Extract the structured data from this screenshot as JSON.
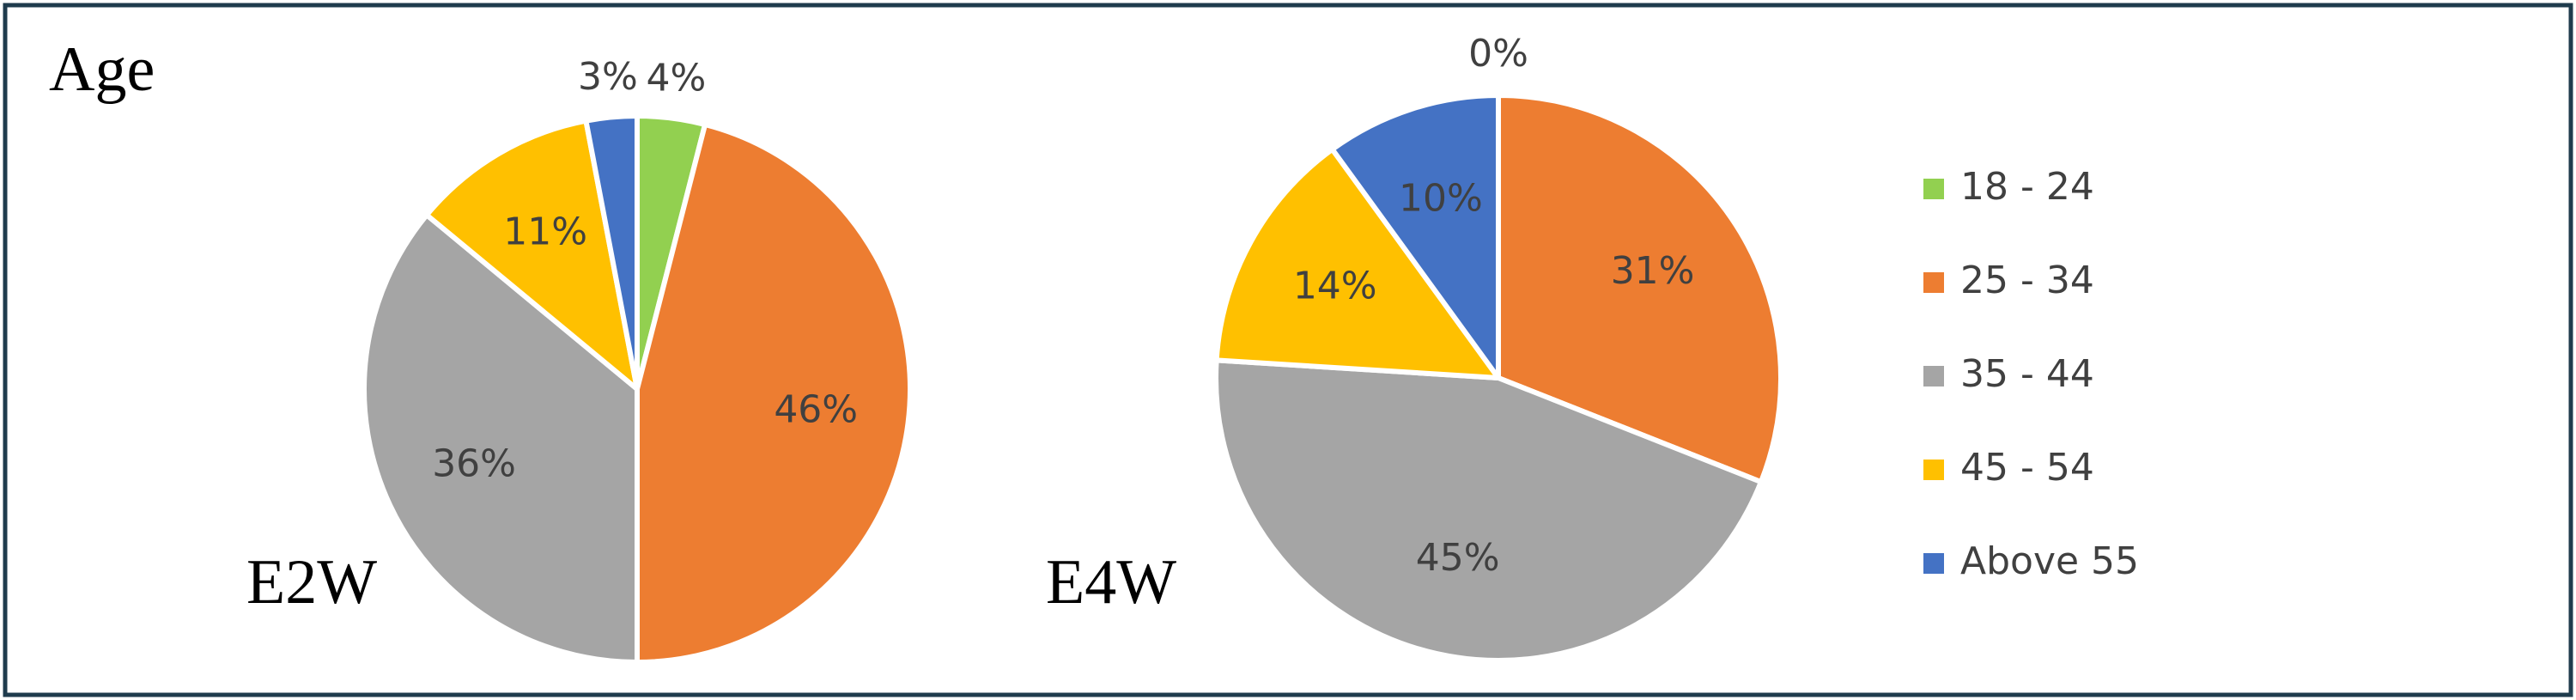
{
  "title": "Age",
  "legend": {
    "categories": [
      "18 - 24",
      "25 - 34",
      "35 - 44",
      "45 - 54",
      "Above 55"
    ],
    "colors": [
      "#92d050",
      "#ed7d31",
      "#a5a5a5",
      "#ffc000",
      "#4472c4"
    ]
  },
  "chart_data": [
    {
      "type": "pie",
      "label": "E2W",
      "values": [
        4,
        46,
        36,
        11,
        3
      ],
      "value_labels": [
        "4%",
        "46%",
        "36%",
        "11%",
        "3%"
      ]
    },
    {
      "type": "pie",
      "label": "E4W",
      "values": [
        0,
        31,
        45,
        14,
        10
      ],
      "value_labels": [
        "0%",
        "31%",
        "45%",
        "14%",
        "10%"
      ]
    }
  ]
}
